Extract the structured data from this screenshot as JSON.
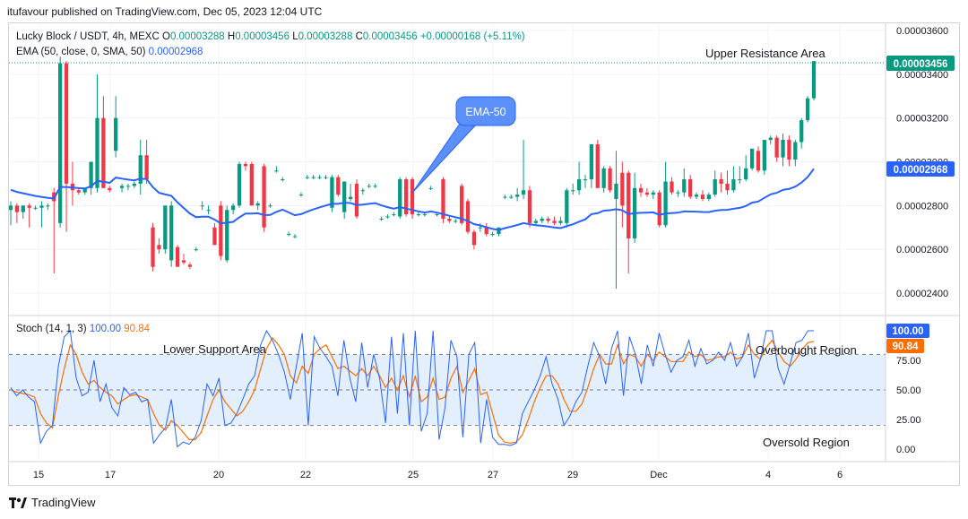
{
  "header": {
    "published": "itufavour published on TradingView.com, Dec 05, 2023 12:04 UTC"
  },
  "legend": {
    "symbol": "Lucky Block / USDT, 4h, MEXC",
    "o_label": "O",
    "o": "0.00003288",
    "h_label": "H",
    "h": "0.00003456",
    "l_label": "L",
    "l": "0.00003288",
    "c_label": "C",
    "c": "0.00003456",
    "change": "+0.00000168 (+5.11%)",
    "ema_label": "EMA (50, close, 0, SMA, 50)",
    "ema_value": "0.00002968",
    "stoch_label": "Stoch (14, 1, 3)",
    "stoch_k": "100.00",
    "stoch_d": "90.84"
  },
  "annotations": {
    "upper_resistance": "Upper Resistance Area",
    "ema_callout": "EMA-50",
    "lower_support": "Lower Support Area",
    "overbought": "Overbought Region",
    "oversold": "Oversold Region"
  },
  "footer": {
    "brand": "TradingView"
  },
  "colors": {
    "up": "#089981",
    "down": "#f23645",
    "ema": "#2962ff",
    "stoch_k": "#2962ff",
    "stoch_d": "#ff6d00",
    "band": "#e3effd",
    "callout": "#5b8ff9"
  },
  "chart_data": [
    {
      "type": "candlestick",
      "x_ticks": [
        "15",
        "17",
        "20",
        "22",
        "25",
        "27",
        "29",
        "Dec",
        "4",
        "6"
      ],
      "y_ticks": [
        "0.00003600",
        "0.00003400",
        "0.00003200",
        "0.00003000",
        "0.00002800",
        "0.00002600",
        "0.00002400"
      ],
      "ylim": [
        2.3e-05,
        3.62e-05
      ],
      "last_price": "0.00003456",
      "ema_last": "0.00002968",
      "candles": [
        [
          2.78e-05,
          2.82e-05,
          2.71e-05,
          2.8e-05
        ],
        [
          2.8e-05,
          2.81e-05,
          2.72e-05,
          2.77e-05
        ],
        [
          2.77e-05,
          2.8e-05,
          2.74e-05,
          2.8e-05
        ],
        [
          2.8e-05,
          2.81e-05,
          2.7e-05,
          2.79e-05
        ],
        [
          2.79e-05,
          2.8e-05,
          2.78e-05,
          2.79e-05
        ],
        [
          2.79e-05,
          2.82e-05,
          2.7e-05,
          2.8e-05
        ],
        [
          2.8e-05,
          2.81e-05,
          2.78e-05,
          2.8e-05
        ],
        [
          2.86e-05,
          2.88e-05,
          2.49e-05,
          2.82e-05
        ],
        [
          2.72e-05,
          3.48e-05,
          2.7e-05,
          3.45e-05
        ],
        [
          3.45e-05,
          3.46e-05,
          2.68e-05,
          2.9e-05
        ],
        [
          2.9e-05,
          3e-05,
          2.8e-05,
          2.87e-05
        ],
        [
          2.87e-05,
          2.88e-05,
          2.85e-05,
          2.86e-05
        ],
        [
          2.86e-05,
          2.88e-05,
          2.85e-05,
          2.88e-05
        ],
        [
          2.88e-05,
          3e-05,
          2.85e-05,
          3e-05
        ],
        [
          2.88e-05,
          3.4e-05,
          2.86e-05,
          3.2e-05
        ],
        [
          3.2e-05,
          3.3e-05,
          2.88e-05,
          2.88e-05
        ],
        [
          2.88e-05,
          2.89e-05,
          2.86e-05,
          2.87e-05
        ],
        [
          3.05e-05,
          3.3e-05,
          3.02e-05,
          3.2e-05
        ],
        [
          2.88e-05,
          2.9e-05,
          2.86e-05,
          2.89e-05
        ],
        [
          2.89e-05,
          2.9e-05,
          2.87e-05,
          2.89e-05
        ],
        [
          2.89e-05,
          2.91e-05,
          2.88e-05,
          2.9e-05
        ],
        [
          2.9e-05,
          3.1e-05,
          2.85e-05,
          3.03e-05
        ],
        [
          3.03e-05,
          3.1e-05,
          2.9e-05,
          2.92e-05
        ],
        [
          2.7e-05,
          2.72e-05,
          2.5e-05,
          2.52e-05
        ],
        [
          2.62e-05,
          2.65e-05,
          2.58e-05,
          2.6e-05
        ],
        [
          2.6e-05,
          2.8e-05,
          2.58e-05,
          2.8e-05
        ],
        [
          2.55e-05,
          2.82e-05,
          2.52e-05,
          2.8e-05
        ],
        [
          2.61e-05,
          2.62e-05,
          2.52e-05,
          2.52e-05
        ],
        [
          2.55e-05,
          2.58e-05,
          2.53e-05,
          2.54e-05
        ],
        [
          2.53e-05,
          2.54e-05,
          2.51e-05,
          2.52e-05
        ],
        [
          2.6e-05,
          2.61e-05,
          2.59e-05,
          2.6e-05
        ],
        [
          2.8e-05,
          2.82e-05,
          2.78e-05,
          2.8e-05
        ],
        [
          2.78e-05,
          2.8e-05,
          2.76e-05,
          2.78e-05
        ],
        [
          2.7e-05,
          2.72e-05,
          2.62e-05,
          2.62e-05
        ],
        [
          2.8e-05,
          2.82e-05,
          2.55e-05,
          2.57e-05
        ],
        [
          2.55e-05,
          2.8e-05,
          2.54e-05,
          2.78e-05
        ],
        [
          2.78e-05,
          2.81e-05,
          2.76e-05,
          2.8e-05
        ],
        [
          2.8e-05,
          3e-05,
          2.79e-05,
          2.99e-05
        ],
        [
          2.99e-05,
          3e-05,
          2.96e-05,
          2.98e-05
        ],
        [
          2.99e-05,
          3e-05,
          2.8e-05,
          2.8e-05
        ],
        [
          2.8e-05,
          2.82e-05,
          2.78e-05,
          2.81e-05
        ],
        [
          2.98e-05,
          2.99e-05,
          2.68e-05,
          2.7e-05
        ],
        [
          2.8e-05,
          2.81e-05,
          2.79e-05,
          2.8e-05
        ],
        [
          2.96e-05,
          2.98e-05,
          2.95e-05,
          2.96e-05
        ],
        [
          2.92e-05,
          2.93e-05,
          2.91e-05,
          2.92e-05
        ],
        [
          2.67e-05,
          2.68e-05,
          2.66e-05,
          2.67e-05
        ],
        [
          2.66e-05,
          2.67e-05,
          2.65e-05,
          2.66e-05
        ],
        [
          2.85e-05,
          2.86e-05,
          2.84e-05,
          2.85e-05
        ],
        [
          2.93e-05,
          2.94e-05,
          2.92e-05,
          2.93e-05
        ],
        [
          2.93e-05,
          2.94e-05,
          2.92e-05,
          2.93e-05
        ],
        [
          2.93e-05,
          2.94e-05,
          2.92e-05,
          2.93e-05
        ],
        [
          2.93e-05,
          2.94e-05,
          2.92e-05,
          2.93e-05
        ],
        [
          2.79e-05,
          2.94e-05,
          2.77e-05,
          2.93e-05
        ],
        [
          2.93e-05,
          2.94e-05,
          2.84e-05,
          2.85e-05
        ],
        [
          2.77e-05,
          2.91e-05,
          2.74e-05,
          2.91e-05
        ],
        [
          2.83e-05,
          2.9e-05,
          2.82e-05,
          2.84e-05
        ],
        [
          2.9e-05,
          2.92e-05,
          2.74e-05,
          2.75e-05
        ],
        [
          2.87e-05,
          2.88e-05,
          2.85e-05,
          2.87e-05
        ],
        [
          2.89e-05,
          2.9e-05,
          2.88e-05,
          2.89e-05
        ],
        [
          2.89e-05,
          2.9e-05,
          2.88e-05,
          2.89e-05
        ],
        [
          2.74e-05,
          2.75e-05,
          2.73e-05,
          2.74e-05
        ],
        [
          2.75e-05,
          2.76e-05,
          2.74e-05,
          2.75e-05
        ],
        [
          2.76e-05,
          2.77e-05,
          2.75e-05,
          2.76e-05
        ],
        [
          2.75e-05,
          2.93e-05,
          2.74e-05,
          2.92e-05
        ],
        [
          2.92e-05,
          2.93e-05,
          2.75e-05,
          2.76e-05
        ],
        [
          2.92e-05,
          2.93e-05,
          2.74e-05,
          2.76e-05
        ],
        [
          2.76e-05,
          2.77e-05,
          2.75e-05,
          2.76e-05
        ],
        [
          2.76e-05,
          2.77e-05,
          2.75e-05,
          2.76e-05
        ],
        [
          2.88e-05,
          2.89e-05,
          2.87e-05,
          2.88e-05
        ],
        [
          2.76e-05,
          2.77e-05,
          2.75e-05,
          2.76e-05
        ],
        [
          2.92e-05,
          2.93e-05,
          2.72e-05,
          2.74e-05
        ],
        [
          2.74e-05,
          2.75e-05,
          2.72e-05,
          2.73e-05
        ],
        [
          2.73e-05,
          2.74e-05,
          2.72e-05,
          2.73e-05
        ],
        [
          2.89e-05,
          2.9e-05,
          2.71e-05,
          2.72e-05
        ],
        [
          2.82e-05,
          2.83e-05,
          2.67e-05,
          2.68e-05
        ],
        [
          2.68e-05,
          2.69e-05,
          2.6e-05,
          2.62e-05
        ],
        [
          2.7e-05,
          2.72e-05,
          2.68e-05,
          2.7e-05
        ],
        [
          2.7e-05,
          2.72e-05,
          2.66e-05,
          2.67e-05
        ],
        [
          2.67e-05,
          2.68e-05,
          2.66e-05,
          2.67e-05
        ],
        [
          2.67e-05,
          2.7e-05,
          2.66e-05,
          2.7e-05
        ],
        [
          2.84e-05,
          2.85e-05,
          2.83e-05,
          2.84e-05
        ],
        [
          2.84e-05,
          2.85e-05,
          2.83e-05,
          2.84e-05
        ],
        [
          2.84e-05,
          2.88e-05,
          2.82e-05,
          2.85e-05
        ],
        [
          2.85e-05,
          3.1e-05,
          2.83e-05,
          2.87e-05
        ],
        [
          2.87e-05,
          2.89e-05,
          2.7e-05,
          2.72e-05
        ],
        [
          2.72e-05,
          2.74e-05,
          2.71e-05,
          2.73e-05
        ],
        [
          2.73e-05,
          2.75e-05,
          2.72e-05,
          2.74e-05
        ],
        [
          2.74e-05,
          2.75e-05,
          2.72e-05,
          2.73e-05
        ],
        [
          2.73e-05,
          2.75e-05,
          2.71e-05,
          2.72e-05
        ],
        [
          2.72e-05,
          2.75e-05,
          2.71e-05,
          2.73e-05
        ],
        [
          2.72e-05,
          2.88e-05,
          2.7e-05,
          2.87e-05
        ],
        [
          2.87e-05,
          2.9e-05,
          2.85e-05,
          2.87e-05
        ],
        [
          2.87e-05,
          3e-05,
          2.85e-05,
          2.92e-05
        ],
        [
          2.92e-05,
          2.94e-05,
          2.88e-05,
          2.92e-05
        ],
        [
          2.92e-05,
          3.08e-05,
          2.88e-05,
          3.08e-05
        ],
        [
          3.08e-05,
          3.1e-05,
          2.88e-05,
          2.88e-05
        ],
        [
          2.88e-05,
          2.98e-05,
          2.86e-05,
          2.97e-05
        ],
        [
          2.97e-05,
          2.98e-05,
          2.86e-05,
          2.87e-05
        ],
        [
          2.83e-05,
          3.05e-05,
          2.42e-05,
          2.9e-05
        ],
        [
          2.95e-05,
          3e-05,
          2.7e-05,
          2.8e-05
        ],
        [
          2.95e-05,
          2.96e-05,
          2.49e-05,
          2.65e-05
        ],
        [
          2.65e-05,
          2.95e-05,
          2.63e-05,
          2.88e-05
        ],
        [
          2.88e-05,
          2.9e-05,
          2.84e-05,
          2.86e-05
        ],
        [
          2.86e-05,
          2.88e-05,
          2.84e-05,
          2.85e-05
        ],
        [
          2.85e-05,
          2.87e-05,
          2.83e-05,
          2.86e-05
        ],
        [
          2.86e-05,
          2.87e-05,
          2.7e-05,
          2.71e-05
        ],
        [
          2.71e-05,
          3e-05,
          2.7e-05,
          2.91e-05
        ],
        [
          2.91e-05,
          2.93e-05,
          2.85e-05,
          2.86e-05
        ],
        [
          2.86e-05,
          2.87e-05,
          2.84e-05,
          2.86e-05
        ],
        [
          2.86e-05,
          2.97e-05,
          2.84e-05,
          2.92e-05
        ],
        [
          2.92e-05,
          2.94e-05,
          2.83e-05,
          2.84e-05
        ],
        [
          2.84e-05,
          2.86e-05,
          2.83e-05,
          2.85e-05
        ],
        [
          2.85e-05,
          2.87e-05,
          2.82e-05,
          2.83e-05
        ],
        [
          2.83e-05,
          2.86e-05,
          2.82e-05,
          2.85e-05
        ],
        [
          2.85e-05,
          2.96e-05,
          2.84e-05,
          2.92e-05
        ],
        [
          2.92e-05,
          2.95e-05,
          2.86e-05,
          2.9e-05
        ],
        [
          2.9e-05,
          2.96e-05,
          2.85e-05,
          2.87e-05
        ],
        [
          2.87e-05,
          2.98e-05,
          2.86e-05,
          2.92e-05
        ],
        [
          2.92e-05,
          2.98e-05,
          2.9e-05,
          2.92e-05
        ],
        [
          2.92e-05,
          3.03e-05,
          2.91e-05,
          2.97e-05
        ],
        [
          2.97e-05,
          3.06e-05,
          2.96e-05,
          3.06e-05
        ],
        [
          3.05e-05,
          3.07e-05,
          2.95e-05,
          2.96e-05
        ],
        [
          2.96e-05,
          3.1e-05,
          2.94e-05,
          3.1e-05
        ],
        [
          3.1e-05,
          3.12e-05,
          3.08e-05,
          3.11e-05
        ],
        [
          3.11e-05,
          3.12e-05,
          3e-05,
          3.02e-05
        ],
        [
          3.02e-05,
          3.13e-05,
          2.98e-05,
          3.1e-05
        ],
        [
          3.1e-05,
          3.12e-05,
          2.98e-05,
          3.01e-05
        ],
        [
          3.01e-05,
          3.1e-05,
          2.98e-05,
          3.09e-05
        ],
        [
          3.09e-05,
          3.2e-05,
          3.06e-05,
          3.19e-05
        ],
        [
          3.19e-05,
          3.3e-05,
          3.18e-05,
          3.29e-05
        ],
        [
          3.29e-05,
          3.46e-05,
          3.28e-05,
          3.46e-05
        ]
      ]
    },
    {
      "type": "line",
      "y_ticks": [
        "100.00",
        "75.00",
        "50.00",
        "25.00",
        "0.00"
      ],
      "ylim": [
        -8,
        108
      ],
      "overbought": 80,
      "oversold": 20,
      "series": [
        {
          "values": [
            52,
            45,
            50,
            44,
            40,
            5,
            15,
            20,
            70,
            95,
            100,
            60,
            45,
            48,
            75,
            40,
            55,
            35,
            28,
            52,
            46,
            48,
            40,
            42,
            5,
            12,
            18,
            42,
            2,
            6,
            4,
            10,
            24,
            55,
            45,
            60,
            20,
            22,
            30,
            42,
            55,
            62,
            88,
            100,
            92,
            80,
            65,
            42,
            70,
            98,
            20,
            95,
            85,
            78,
            70,
            45,
            92,
            60,
            40,
            90,
            52,
            80,
            60,
            22,
            95,
            30,
            98,
            20,
            100,
            15,
            30,
            100,
            8,
            35,
            92,
            78,
            10,
            80,
            90,
            5,
            42,
            10,
            4,
            4,
            3,
            5,
            30,
            40,
            50,
            62,
            78,
            55,
            42,
            20,
            28,
            40,
            48,
            70,
            90,
            78,
            55,
            85,
            100,
            45,
            95,
            80,
            55,
            88,
            70,
            98,
            80,
            65,
            75,
            78,
            92,
            70,
            85,
            72,
            75,
            82,
            75,
            90,
            70,
            78,
            98,
            60,
            76,
            100,
            100,
            68,
            55,
            72,
            90,
            92,
            100,
            100
          ]
        },
        {
          "values": [
            50,
            48,
            47,
            46,
            44,
            30,
            22,
            18,
            45,
            68,
            88,
            80,
            65,
            55,
            58,
            52,
            48,
            45,
            38,
            42,
            45,
            46,
            44,
            42,
            30,
            20,
            16,
            24,
            20,
            14,
            8,
            8,
            14,
            28,
            42,
            50,
            40,
            34,
            28,
            32,
            40,
            50,
            68,
            85,
            94,
            88,
            80,
            62,
            56,
            70,
            64,
            80,
            85,
            88,
            78,
            68,
            70,
            66,
            62,
            68,
            62,
            70,
            62,
            52,
            60,
            50,
            62,
            44,
            62,
            40,
            44,
            60,
            42,
            44,
            60,
            70,
            48,
            58,
            68,
            46,
            48,
            30,
            12,
            6,
            5,
            6,
            12,
            25,
            40,
            52,
            62,
            62,
            55,
            42,
            32,
            32,
            38,
            52,
            68,
            80,
            72,
            72,
            88,
            72,
            80,
            78,
            70,
            80,
            75,
            82,
            78,
            74,
            74,
            74,
            82,
            78,
            80,
            75,
            76,
            78,
            78,
            82,
            76,
            78,
            88,
            80,
            76,
            86,
            92,
            82,
            74,
            70,
            76,
            84,
            90,
            91
          ]
        }
      ]
    }
  ]
}
